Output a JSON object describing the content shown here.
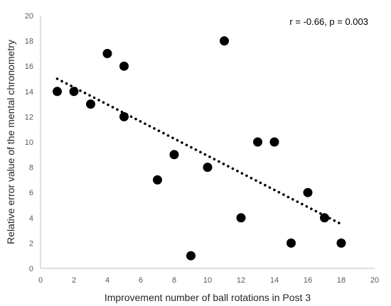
{
  "chart_data": {
    "type": "scatter",
    "title": "",
    "xlabel": "Improvement number of ball rotations in Post 3",
    "ylabel": "Relative  error value of the mental chronometry",
    "annotation": "r = -0.66, p = 0.003",
    "xlim": [
      0,
      20
    ],
    "ylim": [
      0,
      20
    ],
    "xticks": [
      0,
      2,
      4,
      6,
      8,
      10,
      12,
      14,
      16,
      18,
      20
    ],
    "yticks": [
      0,
      2,
      4,
      6,
      8,
      10,
      12,
      14,
      16,
      18,
      20
    ],
    "xtick_labels": [
      "0",
      "2",
      "4",
      "6",
      "8",
      "10",
      "12",
      "14",
      "16",
      "18",
      "20"
    ],
    "ytick_labels": [
      "0",
      "2",
      "4",
      "6",
      "8",
      "10",
      "12",
      "14",
      "16",
      "18",
      "20"
    ],
    "grid": false,
    "points": [
      {
        "x": 1,
        "y": 14
      },
      {
        "x": 2,
        "y": 14
      },
      {
        "x": 3,
        "y": 13
      },
      {
        "x": 4,
        "y": 17
      },
      {
        "x": 5,
        "y": 16
      },
      {
        "x": 5,
        "y": 12
      },
      {
        "x": 7,
        "y": 7
      },
      {
        "x": 8,
        "y": 9
      },
      {
        "x": 9,
        "y": 1
      },
      {
        "x": 10,
        "y": 8
      },
      {
        "x": 11,
        "y": 18
      },
      {
        "x": 12,
        "y": 4
      },
      {
        "x": 13,
        "y": 10
      },
      {
        "x": 14,
        "y": 10
      },
      {
        "x": 15,
        "y": 2
      },
      {
        "x": 16,
        "y": 6
      },
      {
        "x": 17,
        "y": 4
      },
      {
        "x": 18,
        "y": 2
      }
    ],
    "trendline": {
      "style": "dotted",
      "x": [
        1,
        18
      ],
      "y": [
        15.0,
        3.5
      ]
    },
    "colors": {
      "points": "#000000",
      "trendline": "#000000",
      "axes": "#bfbfbf",
      "tick_text": "#595959",
      "title_text": "#262626"
    }
  }
}
